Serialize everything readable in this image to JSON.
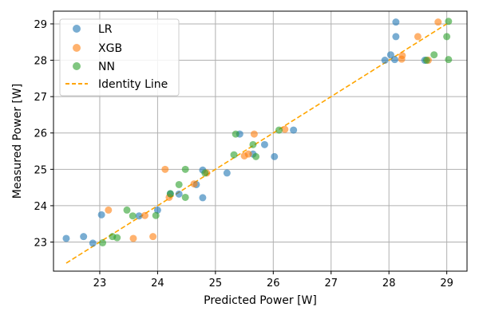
{
  "chart_data": {
    "type": "scatter",
    "xlabel": "Predicted Power [W]",
    "ylabel": "Measured Power [W]",
    "xlim": [
      22.2,
      29.35
    ],
    "ylim": [
      22.2,
      29.35
    ],
    "xticks": [
      23,
      24,
      25,
      26,
      27,
      28,
      29
    ],
    "yticks": [
      23,
      24,
      25,
      26,
      27,
      28,
      29
    ],
    "grid": true,
    "legend_position": "top-left",
    "series": [
      {
        "name": "LR",
        "color": "#1f77b4",
        "points": [
          [
            22.42,
            23.1
          ],
          [
            22.72,
            23.15
          ],
          [
            22.88,
            22.97
          ],
          [
            23.03,
            23.75
          ],
          [
            23.68,
            23.72
          ],
          [
            24.0,
            23.88
          ],
          [
            24.22,
            24.33
          ],
          [
            24.37,
            24.32
          ],
          [
            24.67,
            24.58
          ],
          [
            24.78,
            24.98
          ],
          [
            24.78,
            24.22
          ],
          [
            25.2,
            24.9
          ],
          [
            25.42,
            25.97
          ],
          [
            25.65,
            25.42
          ],
          [
            25.85,
            25.68
          ],
          [
            26.02,
            25.35
          ],
          [
            26.35,
            26.08
          ],
          [
            27.93,
            28.0
          ],
          [
            28.03,
            28.15
          ],
          [
            28.1,
            28.02
          ],
          [
            28.12,
            28.65
          ],
          [
            28.12,
            29.05
          ],
          [
            28.62,
            28.0
          ]
        ]
      },
      {
        "name": "XGB",
        "color": "#ff7f0e",
        "points": [
          [
            23.15,
            23.88
          ],
          [
            23.58,
            23.1
          ],
          [
            23.78,
            23.73
          ],
          [
            23.92,
            23.15
          ],
          [
            24.13,
            25.0
          ],
          [
            24.2,
            24.23
          ],
          [
            24.63,
            24.6
          ],
          [
            24.85,
            24.9
          ],
          [
            25.5,
            25.37
          ],
          [
            25.57,
            25.42
          ],
          [
            25.67,
            25.97
          ],
          [
            26.2,
            26.1
          ],
          [
            28.22,
            28.03
          ],
          [
            28.23,
            28.13
          ],
          [
            28.5,
            28.65
          ],
          [
            28.68,
            28.0
          ],
          [
            28.85,
            29.05
          ]
        ]
      },
      {
        "name": "NN",
        "color": "#2ca02c",
        "points": [
          [
            23.05,
            22.98
          ],
          [
            23.22,
            23.15
          ],
          [
            23.3,
            23.12
          ],
          [
            23.47,
            23.88
          ],
          [
            23.57,
            23.72
          ],
          [
            23.97,
            23.73
          ],
          [
            24.22,
            24.33
          ],
          [
            24.37,
            24.58
          ],
          [
            24.48,
            24.23
          ],
          [
            24.48,
            25.0
          ],
          [
            24.82,
            24.9
          ],
          [
            25.32,
            25.4
          ],
          [
            25.35,
            25.97
          ],
          [
            25.65,
            25.68
          ],
          [
            25.7,
            25.35
          ],
          [
            26.1,
            26.08
          ],
          [
            28.65,
            28.0
          ],
          [
            28.78,
            28.15
          ],
          [
            29.0,
            28.65
          ],
          [
            29.03,
            28.02
          ],
          [
            29.03,
            29.07
          ]
        ]
      }
    ],
    "identity_line": {
      "name": "Identity Line",
      "color": "#ffa500",
      "x": [
        22.42,
        29.05
      ],
      "y": [
        22.42,
        29.05
      ]
    }
  }
}
